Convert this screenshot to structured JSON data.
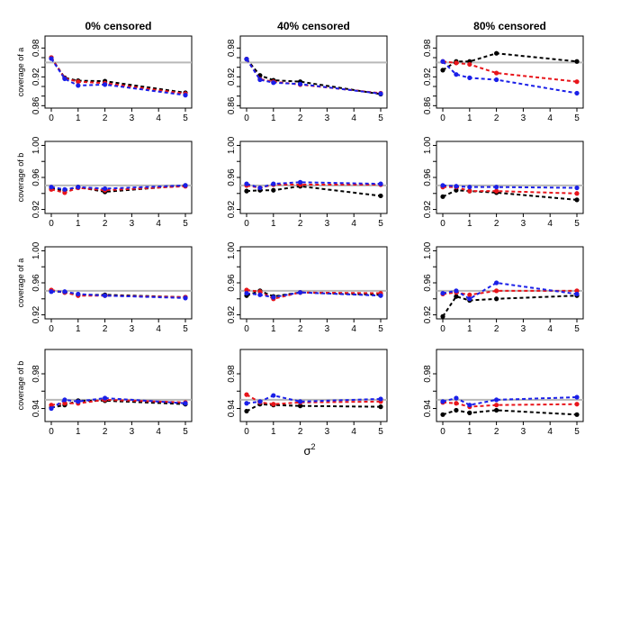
{
  "chart_data": {
    "type": "line",
    "figure_xlabel": "σ",
    "figure_xlabel_superscript": "2",
    "column_titles": [
      "0% censored",
      "40% censored",
      "80% censored"
    ],
    "x": [
      0,
      0.5,
      1,
      2,
      5
    ],
    "x_ticks": [
      0,
      1,
      2,
      3,
      4,
      5
    ],
    "reference_line": 0.95,
    "series_colors": {
      "black": "#000000",
      "red": "#e8151b",
      "blue": "#1a1fe8",
      "reference": "#b8b8b8"
    },
    "rows": [
      {
        "ylabel": "coverage of a",
        "ylim": [
          0.855,
          1.005
        ],
        "y_ticks": [
          0.86,
          0.92,
          0.98
        ],
        "y_ticks_all": [
          0.86,
          0.88,
          0.9,
          0.92,
          0.94,
          0.96,
          0.98
        ],
        "y_tick_labels": [
          "0.86",
          "",
          "",
          "0.92",
          "",
          "",
          "0.98"
        ],
        "panels": [
          {
            "black": [
              0.96,
              0.918,
              0.912,
              0.911,
              0.887
            ],
            "red": [
              0.96,
              0.917,
              0.91,
              0.907,
              0.885
            ],
            "blue": [
              0.958,
              0.916,
              0.902,
              0.904,
              0.882
            ]
          },
          {
            "black": [
              0.957,
              0.923,
              0.913,
              0.91,
              0.884
            ],
            "red": [
              0.957,
              0.915,
              0.91,
              0.904,
              0.886
            ],
            "blue": [
              0.957,
              0.914,
              0.908,
              0.905,
              0.885
            ]
          },
          {
            "black": [
              0.934,
              0.952,
              0.952,
              0.969,
              0.952
            ],
            "red": [
              0.952,
              0.949,
              0.946,
              0.928,
              0.91
            ],
            "blue": [
              0.952,
              0.925,
              0.918,
              0.914,
              0.886
            ]
          }
        ]
      },
      {
        "ylabel": "coverage of b",
        "ylim": [
          0.915,
          1.005
        ],
        "y_ticks": [
          0.92,
          0.96,
          1.0
        ],
        "y_ticks_all": [
          0.92,
          0.94,
          0.96,
          0.98,
          1.0
        ],
        "y_tick_labels": [
          "0.92",
          "",
          "0.96",
          "",
          "1.00"
        ],
        "panels": [
          {
            "black": [
              0.946,
              0.944,
              0.948,
              0.942,
              0.95
            ],
            "red": [
              0.945,
              0.941,
              0.947,
              0.944,
              0.949
            ],
            "blue": [
              0.948,
              0.945,
              0.948,
              0.946,
              0.95
            ]
          },
          {
            "black": [
              0.943,
              0.944,
              0.944,
              0.949,
              0.937
            ],
            "red": [
              0.95,
              0.947,
              0.951,
              0.951,
              0.951
            ],
            "blue": [
              0.952,
              0.947,
              0.952,
              0.954,
              0.952
            ]
          },
          {
            "black": [
              0.936,
              0.944,
              0.943,
              0.941,
              0.932
            ],
            "red": [
              0.948,
              0.948,
              0.943,
              0.943,
              0.94
            ],
            "blue": [
              0.95,
              0.949,
              0.948,
              0.948,
              0.947
            ]
          }
        ]
      },
      {
        "ylabel": "coverage of a",
        "ylim": [
          0.915,
          1.005
        ],
        "y_ticks": [
          0.92,
          0.96,
          1.0
        ],
        "y_ticks_all": [
          0.92,
          0.94,
          0.96,
          0.98,
          1.0
        ],
        "y_tick_labels": [
          "0.92",
          "",
          "0.96",
          "",
          "1.00"
        ],
        "panels": [
          {
            "black": [
              0.95,
              0.948,
              0.945,
              0.945,
              0.942
            ],
            "red": [
              0.951,
              0.948,
              0.944,
              0.944,
              0.942
            ],
            "blue": [
              0.949,
              0.949,
              0.946,
              0.944,
              0.941
            ]
          },
          {
            "black": [
              0.944,
              0.95,
              0.943,
              0.948,
              0.945
            ],
            "red": [
              0.951,
              0.949,
              0.94,
              0.948,
              0.947
            ],
            "blue": [
              0.947,
              0.945,
              0.942,
              0.948,
              0.944
            ]
          },
          {
            "black": [
              0.918,
              0.943,
              0.938,
              0.94,
              0.944
            ],
            "red": [
              0.946,
              0.948,
              0.945,
              0.95,
              0.95
            ],
            "blue": [
              0.947,
              0.95,
              0.94,
              0.96,
              0.946
            ]
          }
        ]
      },
      {
        "ylabel": "coverage of b",
        "ylim": [
          0.925,
          1.008
        ],
        "y_ticks": [
          0.94,
          0.98
        ],
        "y_ticks_all": [
          0.94,
          0.96,
          0.98
        ],
        "y_tick_labels": [
          "0.94",
          "",
          "0.98"
        ],
        "panels": [
          {
            "black": [
              0.941,
              0.944,
              0.949,
              0.949,
              0.945
            ],
            "red": [
              0.944,
              0.946,
              0.946,
              0.95,
              0.947
            ],
            "blue": [
              0.94,
              0.95,
              0.948,
              0.952,
              0.946
            ]
          },
          {
            "black": [
              0.937,
              0.945,
              0.944,
              0.943,
              0.942
            ],
            "red": [
              0.956,
              0.947,
              0.945,
              0.947,
              0.948
            ],
            "blue": [
              0.946,
              0.948,
              0.955,
              0.948,
              0.951
            ]
          },
          {
            "black": [
              0.933,
              0.938,
              0.935,
              0.938,
              0.933
            ],
            "red": [
              0.947,
              0.946,
              0.942,
              0.944,
              0.945
            ],
            "blue": [
              0.948,
              0.952,
              0.944,
              0.95,
              0.953
            ]
          }
        ]
      }
    ]
  }
}
